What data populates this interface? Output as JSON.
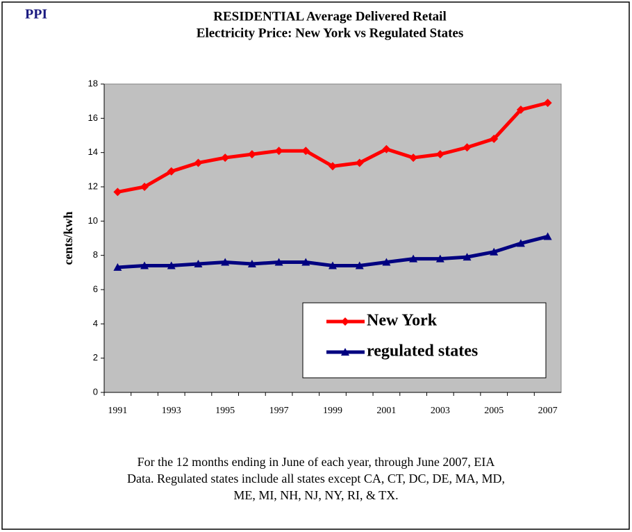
{
  "chart_data": {
    "type": "line",
    "badge": "PPI",
    "title": [
      "RESIDENTIAL Average Delivered Retail",
      "Electricity Price: New York vs Regulated States"
    ],
    "y_label": "cents/kwh",
    "categories": [
      "1991",
      null,
      "1993",
      null,
      "1995",
      null,
      "1997",
      null,
      "1999",
      null,
      "2001",
      null,
      "2003",
      null,
      "2005",
      null,
      "2007"
    ],
    "series": [
      {
        "name": "New York",
        "color": "#ff0000",
        "marker": "diamond",
        "values": [
          11.7,
          12.0,
          12.9,
          13.4,
          13.7,
          13.9,
          14.1,
          14.1,
          13.2,
          13.4,
          14.2,
          13.7,
          13.9,
          14.3,
          14.8,
          16.5,
          16.9
        ]
      },
      {
        "name": "regulated states",
        "color": "#000080",
        "marker": "triangle",
        "values": [
          7.3,
          7.4,
          7.4,
          7.5,
          7.6,
          7.5,
          7.6,
          7.6,
          7.4,
          7.4,
          7.6,
          7.8,
          7.8,
          7.9,
          8.2,
          8.7,
          9.1
        ]
      }
    ],
    "ylim": [
      0,
      18
    ],
    "yticks": [
      0,
      2,
      4,
      6,
      8,
      10,
      12,
      14,
      16,
      18
    ],
    "legend": "lower right",
    "plot_background": "#c0c0c0",
    "note": [
      "For the 12 months ending in June of each year, through June 2007, EIA",
      "Data.  Regulated states include all states except CA, CT, DC, DE, MA, MD,",
      "ME, MI, NH, NJ, NY, RI, & TX."
    ]
  }
}
